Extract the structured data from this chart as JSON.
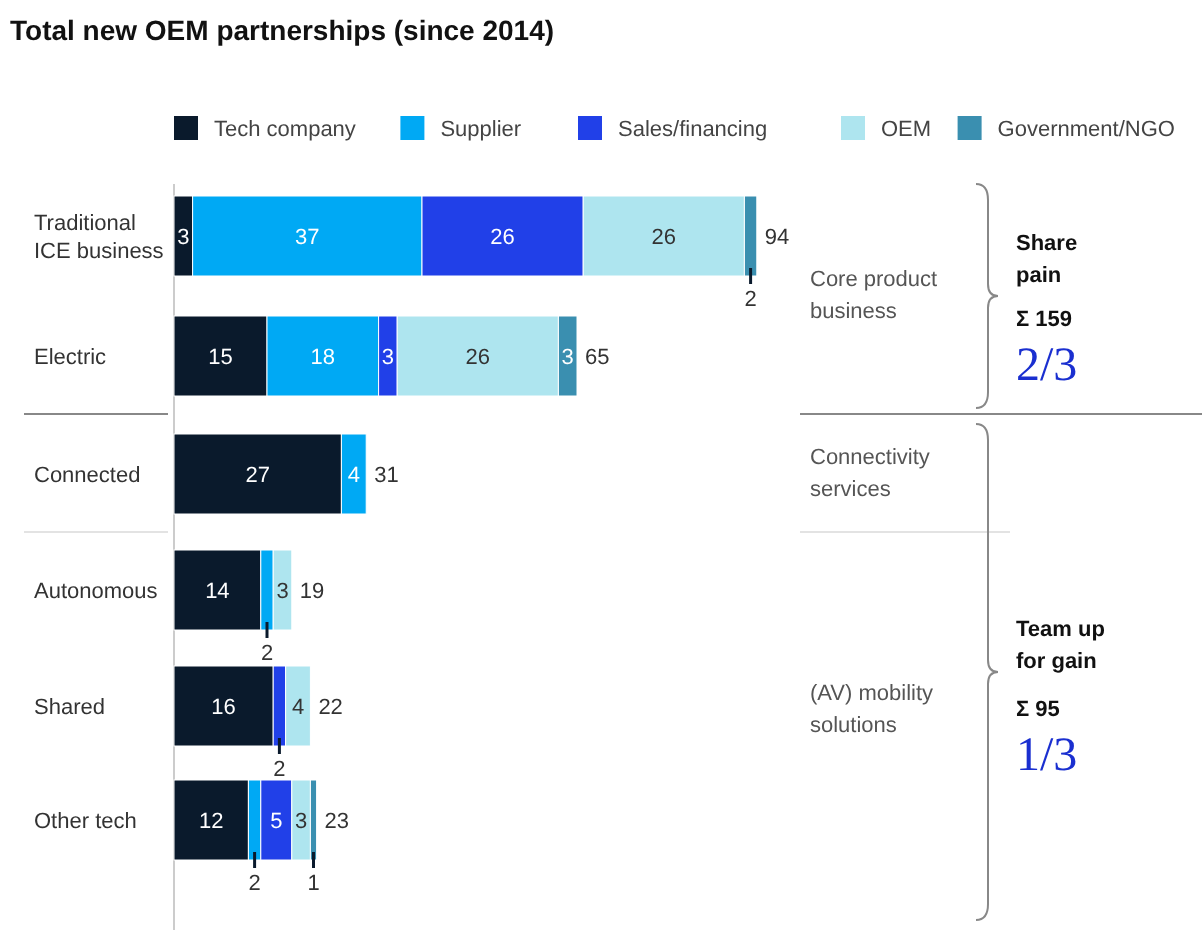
{
  "chart_data": {
    "type": "bar",
    "orientation": "horizontal",
    "stacked": true,
    "title": "Total new OEM partnerships (since 2014)",
    "categories": [
      "Traditional ICE business",
      "Electric",
      "Connected",
      "Autonomous",
      "Shared",
      "Other tech"
    ],
    "series": [
      {
        "name": "Tech company",
        "color": "#0a1a2c",
        "values": [
          3,
          15,
          27,
          14,
          16,
          12
        ],
        "value_labels": [
          "3",
          "15",
          "27",
          "14",
          "16",
          "12"
        ]
      },
      {
        "name": "Supplier",
        "color": "#00a9f4",
        "values": [
          37,
          18,
          4,
          2,
          0,
          2
        ],
        "value_labels": [
          "37",
          "18",
          "4",
          "2",
          null,
          "2"
        ]
      },
      {
        "name": "Sales/financing",
        "color": "#2140e8",
        "values": [
          26,
          3,
          0,
          0,
          2,
          5
        ],
        "value_labels": [
          "26",
          "3",
          null,
          null,
          "2",
          "5"
        ]
      },
      {
        "name": "OEM",
        "color": "#aee5ef",
        "values": [
          26,
          26,
          0,
          3,
          4,
          3
        ],
        "value_labels": [
          "26",
          "26",
          null,
          "3",
          "4",
          "3"
        ]
      },
      {
        "name": "Government/NGO",
        "color": "#3a8fb0",
        "values": [
          2,
          3,
          0,
          0,
          0,
          1
        ],
        "value_labels": [
          "2",
          "3",
          null,
          null,
          null,
          "1"
        ]
      }
    ],
    "totals": [
      "94",
      "65",
      "31",
      "19",
      "22",
      "23"
    ],
    "legend": "top",
    "grid": false,
    "annotations": [
      "Core product business",
      "Connectivity services",
      "(AV) mobility solutions",
      "Share pain",
      "Σ 159",
      "2/3",
      "Team up for gain",
      "Σ 95",
      "1/3"
    ]
  }
}
